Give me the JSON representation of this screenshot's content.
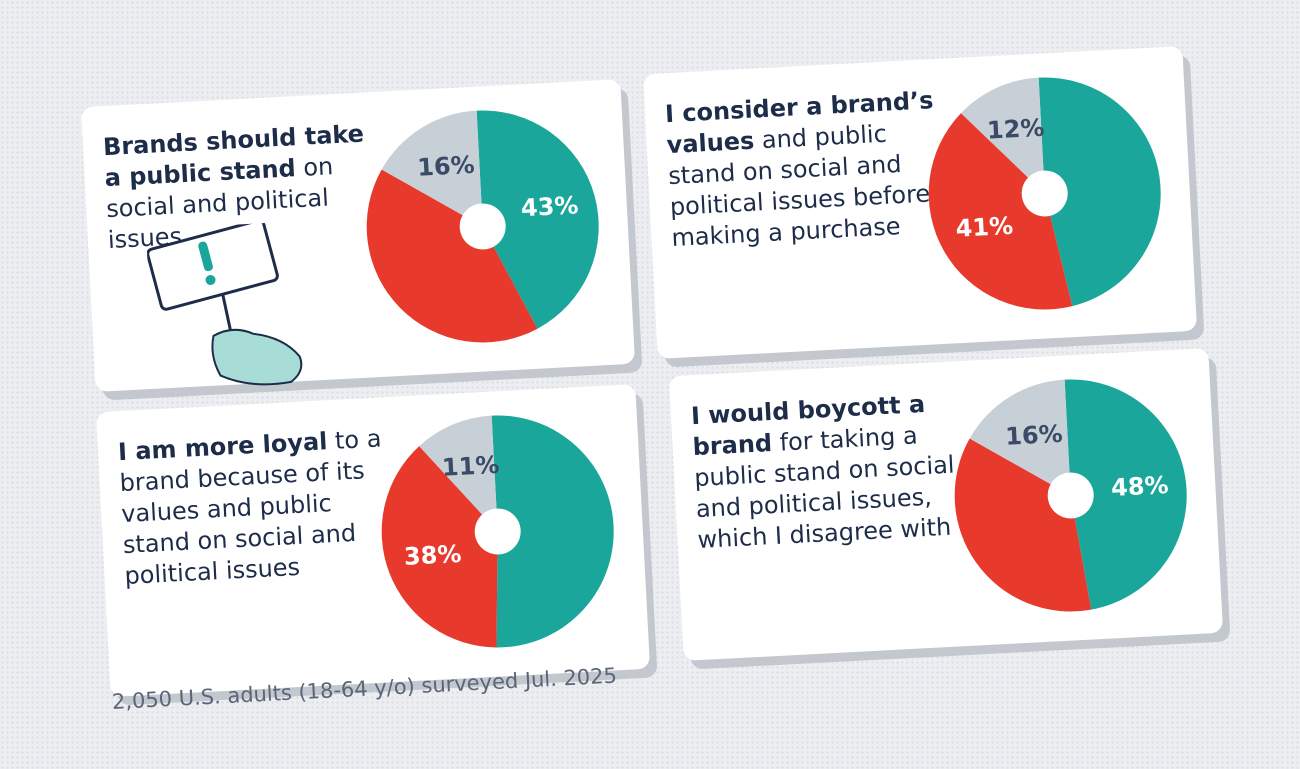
{
  "chart_data": [
    {
      "type": "pie",
      "title": [
        "Brands should take a public stand",
        "on social and political issues"
      ],
      "values": [
        43,
        41,
        16
      ],
      "value_labels": [
        "43%",
        null,
        "16%"
      ],
      "colors": [
        "#1aa69a",
        "#e83a2c",
        "#c7cfd7"
      ]
    },
    {
      "type": "pie",
      "title": [
        "I consider a brand’s values",
        "and public stand on social and political issues before making a purchase"
      ],
      "values": [
        47,
        41,
        12
      ],
      "value_labels": [
        null,
        "41%",
        "12%"
      ],
      "colors": [
        "#1aa69a",
        "#e83a2c",
        "#c7cfd7"
      ]
    },
    {
      "type": "pie",
      "title": [
        "I am more loyal",
        "to a brand because of its values and public stand on social and political issues"
      ],
      "values": [
        51,
        38,
        11
      ],
      "value_labels": [
        null,
        "38%",
        "11%"
      ],
      "colors": [
        "#1aa69a",
        "#e83a2c",
        "#c7cfd7"
      ]
    },
    {
      "type": "pie",
      "title": [
        "I would boycott a brand",
        "for taking a public stand on social and political issues, which I disagree with"
      ],
      "values": [
        48,
        36,
        16
      ],
      "value_labels": [
        "48%",
        null,
        "16%"
      ],
      "colors": [
        "#1aa69a",
        "#e83a2c",
        "#c7cfd7"
      ]
    }
  ],
  "footnote": "2,050 U.S. adults (18-64 y/o) surveyed Jul. 2025"
}
